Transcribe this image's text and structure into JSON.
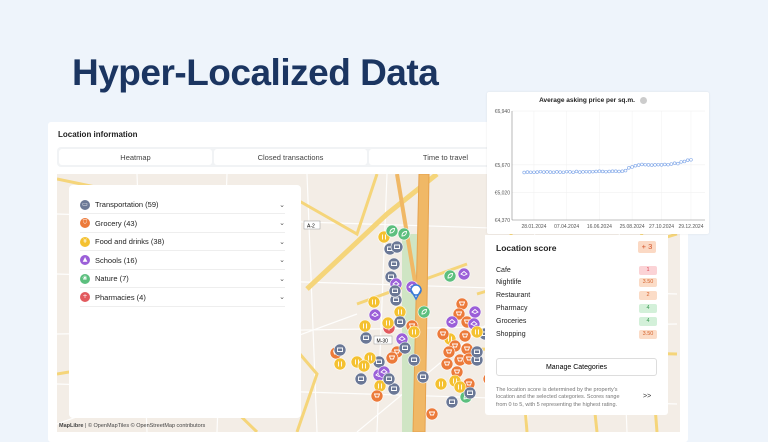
{
  "headline": "Hyper-Localized Data",
  "location_info": {
    "title": "Location information",
    "tabs": [
      {
        "label": "Heatmap"
      },
      {
        "label": "Closed transactions"
      },
      {
        "label": "Time to travel"
      }
    ]
  },
  "map": {
    "road_labels": [
      "A-2",
      "M-30"
    ],
    "attribution_brand": "MapLibre",
    "attribution_rest": " | © OpenMapTiles © OpenStreetMap contributors",
    "categories": [
      {
        "key": "transport",
        "label": "Transportation (59)",
        "color": "#6b7896",
        "icon": "bus-icon",
        "glyph": "▭"
      },
      {
        "key": "grocery",
        "label": "Grocery (43)",
        "color": "#ec7a3a",
        "icon": "cart-icon",
        "glyph": "⛉"
      },
      {
        "key": "food",
        "label": "Food and drinks (38)",
        "color": "#f4c131",
        "icon": "fork-knife-icon",
        "glyph": "¥"
      },
      {
        "key": "schools",
        "label": "Schools (16)",
        "color": "#9b5fd8",
        "icon": "graduation-cap-icon",
        "glyph": "▲"
      },
      {
        "key": "nature",
        "label": "Nature (7)",
        "color": "#5cbf7e",
        "icon": "leaf-icon",
        "glyph": "❀"
      },
      {
        "key": "pharmacy",
        "label": "Pharmacies (4)",
        "color": "#e25a5e",
        "icon": "pharmacy-icon",
        "glyph": "+"
      }
    ],
    "property_pin_color": "#3a7bd5"
  },
  "chart_data": {
    "type": "line",
    "title": "Average asking price per sq.m.",
    "x_ticks": [
      "28.01.2024",
      "07.04.2024",
      "16.06.2024",
      "25.08.2024",
      "27.10.2024",
      "29.12.2024"
    ],
    "y_ticks": [
      "€4,370",
      "€5,020",
      "€5,670",
      "€6,940"
    ],
    "ylim": [
      4370,
      6940
    ],
    "xlim": [
      "2023-12-12",
      "2025-01-28"
    ],
    "x_start": "2024-01-07",
    "x_step_days": 7,
    "values": [
      5490,
      5500,
      5495,
      5495,
      5500,
      5510,
      5500,
      5505,
      5500,
      5495,
      5505,
      5500,
      5495,
      5510,
      5505,
      5495,
      5515,
      5500,
      5505,
      5510,
      5505,
      5510,
      5515,
      5520,
      5515,
      5510,
      5515,
      5520,
      5520,
      5515,
      5520,
      5535,
      5600,
      5620,
      5650,
      5665,
      5680,
      5675,
      5670,
      5665,
      5670,
      5675,
      5670,
      5680,
      5675,
      5690,
      5710,
      5700,
      5740,
      5750,
      5780,
      5790
    ],
    "series_color": "#7fa6e8",
    "grid": true
  },
  "location_score": {
    "title": "Location score",
    "total": "+ 3",
    "rows": [
      {
        "label": "Cafe",
        "score": "1",
        "level": "low"
      },
      {
        "label": "Nightlife",
        "score": "3.50",
        "level": "mid"
      },
      {
        "label": "Restaurant",
        "score": "2",
        "level": "mid"
      },
      {
        "label": "Pharmacy",
        "score": "4",
        "level": "high"
      },
      {
        "label": "Groceries",
        "score": "4",
        "level": "high"
      },
      {
        "label": "Shopping",
        "score": "3.50",
        "level": "mid"
      }
    ],
    "manage_label": "Manage Categories",
    "note": "The location score is determined by the property's location and the selected categories. Scores range from 0 to 5, with 5 representing the highest rating.",
    "more_label": ">>",
    "level_colors": {
      "low": [
        "#fbd3d6",
        "#d9434f"
      ],
      "mid": [
        "#fbdcc7",
        "#d4602a"
      ],
      "high": [
        "#d3f0d9",
        "#3d9a55"
      ]
    }
  }
}
